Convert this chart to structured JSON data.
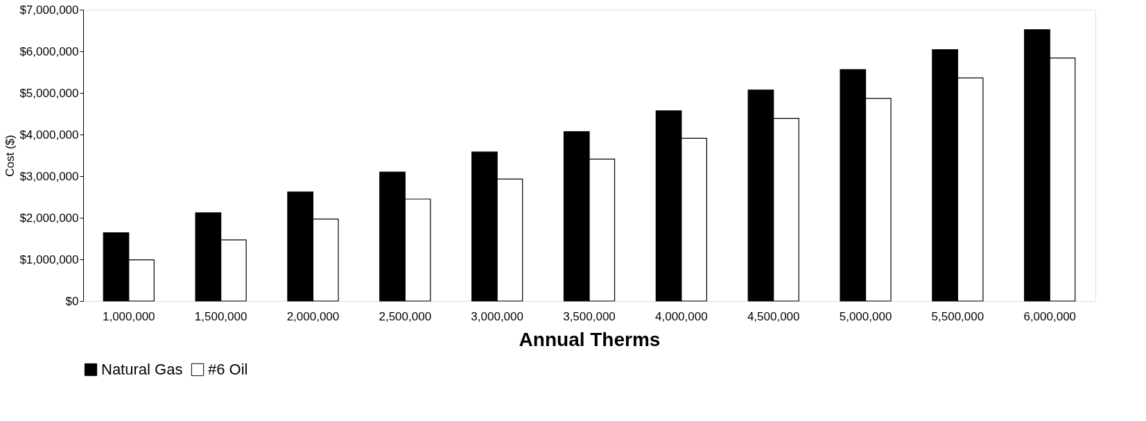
{
  "chart_data": {
    "type": "bar",
    "xlabel": "Annual Therms",
    "ylabel": "Cost ($)",
    "categories": [
      "1,000,000",
      "1,500,000",
      "2,000,000",
      "2,500,000",
      "3,000,000",
      "3,500,000",
      "4,000,000",
      "4,500,000",
      "5,000,000",
      "5,500,000",
      "6,000,000"
    ],
    "series": [
      {
        "name": "Natural Gas",
        "color": "#000000",
        "values": [
          1640000,
          2120000,
          2620000,
          3100000,
          3580000,
          4070000,
          4570000,
          5070000,
          5560000,
          6040000,
          6520000
        ]
      },
      {
        "name": "#6 Oil",
        "color": "#ffffff",
        "values": [
          990000,
          1470000,
          1970000,
          2450000,
          2930000,
          3410000,
          3910000,
          4390000,
          4870000,
          5360000,
          5840000
        ]
      }
    ],
    "ylim": [
      0,
      7000000
    ],
    "yticks": [
      {
        "value": 0,
        "label": "$0"
      },
      {
        "value": 1000000,
        "label": "$1,000,000"
      },
      {
        "value": 2000000,
        "label": "$2,000,000"
      },
      {
        "value": 3000000,
        "label": "$3,000,000"
      },
      {
        "value": 4000000,
        "label": "$4,000,000"
      },
      {
        "value": 5000000,
        "label": "$5,000,000"
      },
      {
        "value": 6000000,
        "label": "$6,000,000"
      },
      {
        "value": 7000000,
        "label": "$7,000,000"
      }
    ],
    "grid": false,
    "legend": "bottom"
  }
}
